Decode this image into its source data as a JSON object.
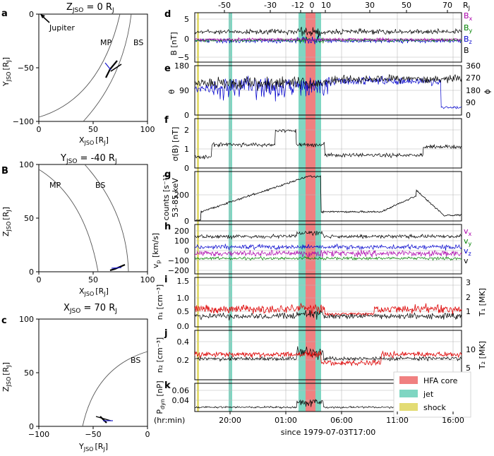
{
  "chart_data": [
    {
      "panel": "a",
      "type": "scatter",
      "title": "Z_JSO = 0 R_J",
      "xlabel": "X_JSO [R_J]",
      "ylabel": "Y_JSO [R_J]",
      "xlim": [
        0,
        100
      ],
      "ylim": [
        -100,
        0
      ],
      "xticks": [
        "0",
        "50",
        "100"
      ],
      "yticks": [
        "0",
        "−50",
        "−100"
      ],
      "annotations": [
        "Jupiter",
        "MP",
        "BS"
      ],
      "trajectory": {
        "x": [
          70,
          72,
          74,
          76,
          79
        ],
        "y": [
          -44,
          -47,
          -50,
          -53,
          -57
        ]
      }
    },
    {
      "panel": "b",
      "type": "scatter",
      "title": "Y_JSO = -40 R_J",
      "xlabel": "X_JSO [R_J]",
      "ylabel": "Z_JSO [R_J]",
      "xlim": [
        0,
        100
      ],
      "ylim": [
        0,
        100
      ],
      "xticks": [
        "0",
        "50",
        "100"
      ],
      "yticks": [
        "0",
        "50",
        "100"
      ],
      "annotations": [
        "MP",
        "BS"
      ],
      "trajectory": {
        "x": [
          66,
          70,
          74,
          78
        ],
        "y": [
          2,
          3.5,
          5,
          7
        ]
      }
    },
    {
      "panel": "c",
      "type": "scatter",
      "title": "X_JSO = 70 R_J",
      "xlabel": "Y_JSO [R_J]",
      "ylabel": "Z_JSO [R_J]",
      "xlim": [
        -100,
        0
      ],
      "ylim": [
        0,
        100
      ],
      "xticks": [
        "−100",
        "−50",
        "0"
      ],
      "yticks": [
        "0",
        "50",
        "100"
      ],
      "annotations": [
        "BS"
      ],
      "trajectory": {
        "x": [
          -44,
          -42,
          -40,
          -38,
          -35
        ],
        "y": [
          9,
          7,
          5,
          3,
          2
        ]
      }
    },
    {
      "panel": "d-k",
      "type": "line",
      "xlabel": "since 1979-07-03T17:00",
      "x_unit": "(hr:min)",
      "xticks": [
        "20:00",
        "01:00",
        "06:00",
        "11:00",
        "16:00"
      ],
      "rj_ticks": [
        "-50",
        "-30",
        "-12",
        "0",
        "10",
        "30",
        "50",
        "70"
      ],
      "rj_label": "R_J",
      "shading": {
        "HFA core": "#f08080",
        "jet": "#7fd6c2",
        "shock": "#e3dc74"
      },
      "legend": [
        "HFA core",
        "jet",
        "shock"
      ],
      "panels": [
        {
          "id": "d",
          "ylabel": "B [nT]",
          "ylim": [
            -5,
            6
          ],
          "yticks": [
            "5",
            "0",
            "−5"
          ],
          "series": [
            "B_x",
            "B_y",
            "B_z",
            "B"
          ]
        },
        {
          "id": "e",
          "ylabel": "θ",
          "ylabel_right": "ϕ",
          "ylim": [
            0,
            180
          ],
          "yticks": [
            "180",
            "90",
            "0"
          ],
          "yticks_right": [
            "360",
            "270",
            "180",
            "90",
            "0"
          ]
        },
        {
          "id": "f",
          "ylabel": "σ(B) [nT]",
          "ylim": [
            0,
            2.6
          ],
          "yticks": [
            "2",
            "1",
            "0"
          ]
        },
        {
          "id": "g",
          "ylabel": "counts [s⁻¹]",
          "ylabel2": "53-85 keV",
          "ylim": [
            0,
            380
          ],
          "yticks": [
            "200",
            "0"
          ]
        },
        {
          "id": "h",
          "ylabel": "v_p [km/s]",
          "ylim": [
            -230,
            250
          ],
          "yticks": [
            "200",
            "100",
            "0",
            "−100",
            "−200"
          ],
          "series": [
            "v_x",
            "v_y",
            "v_z",
            "v"
          ]
        },
        {
          "id": "i",
          "ylabel": "n₁ [cm⁻³]",
          "ylabel_right": "T₁ [MK]",
          "ylim": [
            0,
            1.5
          ],
          "yticks": [
            "1.5",
            "1.0",
            "0.5",
            "0.0"
          ],
          "yticks_right": [
            "3",
            "2",
            "1"
          ]
        },
        {
          "id": "j",
          "ylabel": "n₂ [cm⁻³]",
          "ylabel_right": "T₂ [MK]",
          "ylim": [
            0,
            0.55
          ],
          "yticks": [
            "0.4",
            "0.2"
          ],
          "yticks_right": [
            "10",
            "5"
          ]
        },
        {
          "id": "k",
          "ylabel": "P_dyn [nP]",
          "ylim": [
            0,
            0.07
          ],
          "yticks": [
            "0.06",
            "0.04"
          ]
        }
      ]
    }
  ],
  "labels": {
    "a_title": "Z",
    "a_title_sub": "JSO",
    "a_title_rest": " = 0 R",
    "a_title_j": "J",
    "b_title": "Y",
    "b_title_sub": "JSO",
    "b_title_rest": " = -40 R",
    "b_title_j": "J",
    "c_title": "X",
    "c_title_sub": "JSO",
    "c_title_rest": " = 70 R",
    "c_title_j": "J",
    "a": "a",
    "b": "B",
    "c": "c",
    "d": "d",
    "e": "e",
    "f": "f",
    "g": "g",
    "h": "h",
    "i": "i",
    "j": "j",
    "k": "k",
    "jupiter": "Jupiter",
    "mp": "MP",
    "bs": "BS",
    "x0": "0",
    "x50": "50",
    "x100": "100",
    "ym0": "0",
    "ym50": "−50",
    "ym100": "−100",
    "xn100": "−100",
    "xn50": "−50",
    "axis_a_x": "X",
    "axis_a_y": "Y",
    "axis_z": "Z",
    "axis_y": "Y",
    "axis_x": "X",
    "jso": "JSO",
    "rj_unit": "[R",
    "rj_unit_sub": "J",
    "rj_close": "]",
    "Rj": "R",
    "Rj_sub": "J",
    "rj_m50": "-50",
    "rj_m30": "-30",
    "rj_m12": "-12",
    "rj_0": "0",
    "rj_10": "10",
    "rj_30": "30",
    "rj_50": "50",
    "rj_70": "70",
    "d_yl": "B [nT]",
    "e_yl": "θ",
    "e_yr": "ϕ",
    "f_yl": "σ(B) [nT]",
    "g_yl": "counts [s⁻¹]",
    "g_yl2": "53-85 keV",
    "h_yl": "v",
    "h_yl_sub": "p",
    "h_yl_rest": " [km/s]",
    "i_yl": "n₁ [cm⁻³]",
    "i_yr": "T₁ [MK]",
    "j_yl": "n₂ [cm⁻³]",
    "j_yr": "T₂ [MK]",
    "k_yl": "P",
    "k_yl_sub": "dyn",
    "k_yl_rest": " [nP]",
    "d5": "5",
    "d0": "0",
    "dm5": "−5",
    "e180": "180",
    "e90": "90",
    "e0": "0",
    "er360": "360",
    "er270": "270",
    "er180": "180",
    "er90": "90",
    "er0": "0",
    "f2": "2",
    "f1": "1",
    "f0": "0",
    "g200": "200",
    "g0": "0",
    "h200": "200",
    "h100": "100",
    "h0": "0",
    "hm100": "−100",
    "hm200": "−200",
    "i15": "1.5",
    "i10": "1.0",
    "i05": "0.5",
    "i00": "0.0",
    "ir3": "3",
    "ir2": "2",
    "ir1": "1",
    "j04": "0.4",
    "j02": "0.2",
    "jr10": "10",
    "jr5": "5",
    "k06": "0.06",
    "k04": "0.04",
    "bx": "B",
    "bx_s": "x",
    "by": "B",
    "by_s": "y",
    "bz": "B",
    "bz_s": "z",
    "vx": "v",
    "vx_s": "x",
    "vy": "v",
    "vy_s": "y",
    "vz": "v",
    "vz_s": "z",
    "v": "v",
    "hfa": "HFA core",
    "jet": "jet",
    "shock": "shock",
    "t2000": "20:00",
    "t0100": "01:00",
    "t0600": "06:00",
    "t1100": "11:00",
    "t1600": "16:00",
    "hrmin": "(hr:min)",
    "since": "since 1979-07-03T17:00"
  }
}
